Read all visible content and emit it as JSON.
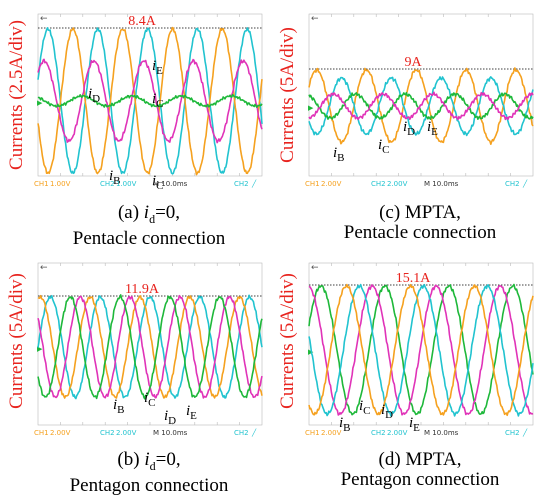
{
  "colors": {
    "phase_A": "#f5a11f",
    "phase_B": "#21c3cf",
    "phase_C": "#e033b8",
    "phase_D": "#1eb83a",
    "status_ch1": "#f5a11f",
    "status_ch2": "#21c3cf",
    "annotation": "#e8231e"
  },
  "panels": [
    {
      "id": "a",
      "ylabel": "Currents (2.5A/div)",
      "peak_label": "8.4A",
      "caption_line1_prefix": "(a) ",
      "caption_line1_sym": "i",
      "caption_line1_sub": "d",
      "caption_line1_suffix": "=0,",
      "caption_line2": "Pentacle connection",
      "status": {
        "ch1": "CH1",
        "ch1_val": "1.00V",
        "ch2": "CH2",
        "ch2_val": "1.00V",
        "time": "M 10.0ms",
        "ch2_right": "CH2"
      },
      "current_labels": [
        {
          "sym": "i",
          "sub": "D"
        },
        {
          "sym": "i",
          "sub": "E"
        },
        {
          "sym": "i",
          "sub": "C"
        },
        {
          "sym": "i",
          "sub": "B"
        },
        {
          "sym": "i",
          "sub": "C"
        }
      ]
    },
    {
      "id": "c",
      "ylabel": "Currents (5A/div)",
      "peak_label": "9A",
      "caption_line1": "(c) MPTA,",
      "caption_line2": "Pentacle connection",
      "status": {
        "ch1": "CH1",
        "ch1_val": "2.00V",
        "ch2": "CH2",
        "ch2_val": "2.00V",
        "time": "M 10.0ms",
        "ch2_right": "CH2"
      },
      "current_labels": [
        {
          "sym": "i",
          "sub": "B"
        },
        {
          "sym": "i",
          "sub": "C"
        },
        {
          "sym": "i",
          "sub": "D"
        },
        {
          "sym": "i",
          "sub": "E"
        }
      ]
    },
    {
      "id": "b",
      "ylabel": "Currents (5A/div)",
      "peak_label": "11.9A",
      "caption_line1_prefix": "(b) ",
      "caption_line1_sym": "i",
      "caption_line1_sub": "d",
      "caption_line1_suffix": "=0,",
      "caption_line2": "Pentagon connection",
      "status": {
        "ch1": "CH1",
        "ch1_val": "2.00V",
        "ch2": "CH2",
        "ch2_val": "2.00V",
        "time": "M 10.0ms",
        "ch2_right": "CH2"
      },
      "current_labels": [
        {
          "sym": "i",
          "sub": "B"
        },
        {
          "sym": "i",
          "sub": "C"
        },
        {
          "sym": "i",
          "sub": "D"
        },
        {
          "sym": "i",
          "sub": "E"
        }
      ]
    },
    {
      "id": "d",
      "ylabel": "Currents (5A/div)",
      "peak_label": "15.1A",
      "caption_line1": "(d) MPTA,",
      "caption_line2": "Pentagon connection",
      "status": {
        "ch1": "CH1",
        "ch1_val": "2.00V",
        "ch2": "CH2",
        "ch2_val": "2.00V",
        "time": "M 10.0ms",
        "ch2_right": "CH2"
      },
      "current_labels": [
        {
          "sym": "i",
          "sub": "B"
        },
        {
          "sym": "i",
          "sub": "C"
        },
        {
          "sym": "i",
          "sub": "D"
        },
        {
          "sym": "i",
          "sub": "E"
        }
      ]
    }
  ],
  "chart_data": [
    {
      "type": "line",
      "panel": "a",
      "ylabel": "Currents (2.5A/div)",
      "peak_label": "8.4A",
      "grid": false,
      "series": [
        {
          "name": "iB",
          "color": "#21c3cf",
          "amplitude_A": 8.4
        },
        {
          "name": "iC",
          "color": "#f5a11f",
          "amplitude_A": 8.4
        },
        {
          "name": "iE",
          "color": "#e033b8",
          "amplitude_A": 4.6
        },
        {
          "name": "iD",
          "color": "#1eb83a",
          "amplitude_A": 0.5
        }
      ],
      "cycles_shown": 4.5
    },
    {
      "type": "line",
      "panel": "c",
      "ylabel": "Currents (5A/div)",
      "peak_label": "9A",
      "grid": false,
      "series": [
        {
          "name": "iB",
          "color": "#f5a11f",
          "amplitude_A": 9
        },
        {
          "name": "iC",
          "color": "#21c3cf",
          "amplitude_A": 7
        },
        {
          "name": "iD",
          "color": "#1eb83a",
          "amplitude_A": 4
        },
        {
          "name": "iE",
          "color": "#e033b8",
          "amplitude_A": 4
        }
      ],
      "cycles_shown": 4.5
    },
    {
      "type": "line",
      "panel": "b",
      "ylabel": "Currents (5A/div)",
      "peak_label": "11.9A",
      "grid": false,
      "series": [
        {
          "name": "iB",
          "color": "#21c3cf",
          "amplitude_A": 11.9
        },
        {
          "name": "iC",
          "color": "#f5a11f",
          "amplitude_A": 11.9
        },
        {
          "name": "iD",
          "color": "#e033b8",
          "amplitude_A": 11.9
        },
        {
          "name": "iE",
          "color": "#1eb83a",
          "amplitude_A": 11.9
        }
      ],
      "cycles_shown": 4.5
    },
    {
      "type": "line",
      "panel": "d",
      "ylabel": "Currents (5A/div)",
      "peak_label": "15.1A",
      "grid": false,
      "series": [
        {
          "name": "iB",
          "color": "#1eb83a",
          "amplitude_A": 15.1
        },
        {
          "name": "iC",
          "color": "#e033b8",
          "amplitude_A": 15.1
        },
        {
          "name": "iD",
          "color": "#21c3cf",
          "amplitude_A": 15.1
        },
        {
          "name": "iE",
          "color": "#f5a11f",
          "amplitude_A": 15.1
        }
      ],
      "cycles_shown": 3.5
    }
  ]
}
